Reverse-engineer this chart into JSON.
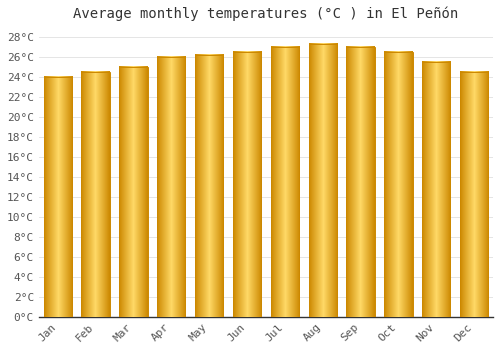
{
  "title": "Average monthly temperatures (°C ) in El Peñón",
  "months": [
    "Jan",
    "Feb",
    "Mar",
    "Apr",
    "May",
    "Jun",
    "Jul",
    "Aug",
    "Sep",
    "Oct",
    "Nov",
    "Dec"
  ],
  "values": [
    24.0,
    24.5,
    25.0,
    26.0,
    26.2,
    26.5,
    27.0,
    27.3,
    27.0,
    26.5,
    25.5,
    24.5
  ],
  "bar_color_center": "#FFD966",
  "bar_color_edge": "#F5A623",
  "ylim": [
    0,
    29
  ],
  "yticks": [
    0,
    2,
    4,
    6,
    8,
    10,
    12,
    14,
    16,
    18,
    20,
    22,
    24,
    26,
    28
  ],
  "ytick_labels": [
    "0°C",
    "2°C",
    "4°C",
    "6°C",
    "8°C",
    "10°C",
    "12°C",
    "14°C",
    "16°C",
    "18°C",
    "20°C",
    "22°C",
    "24°C",
    "26°C",
    "28°C"
  ],
  "background_color": "#ffffff",
  "grid_color": "#e0e0e0",
  "bar_edge_color": "#CC8800",
  "title_fontsize": 10,
  "tick_fontsize": 8,
  "figsize": [
    5.0,
    3.5
  ],
  "dpi": 100
}
